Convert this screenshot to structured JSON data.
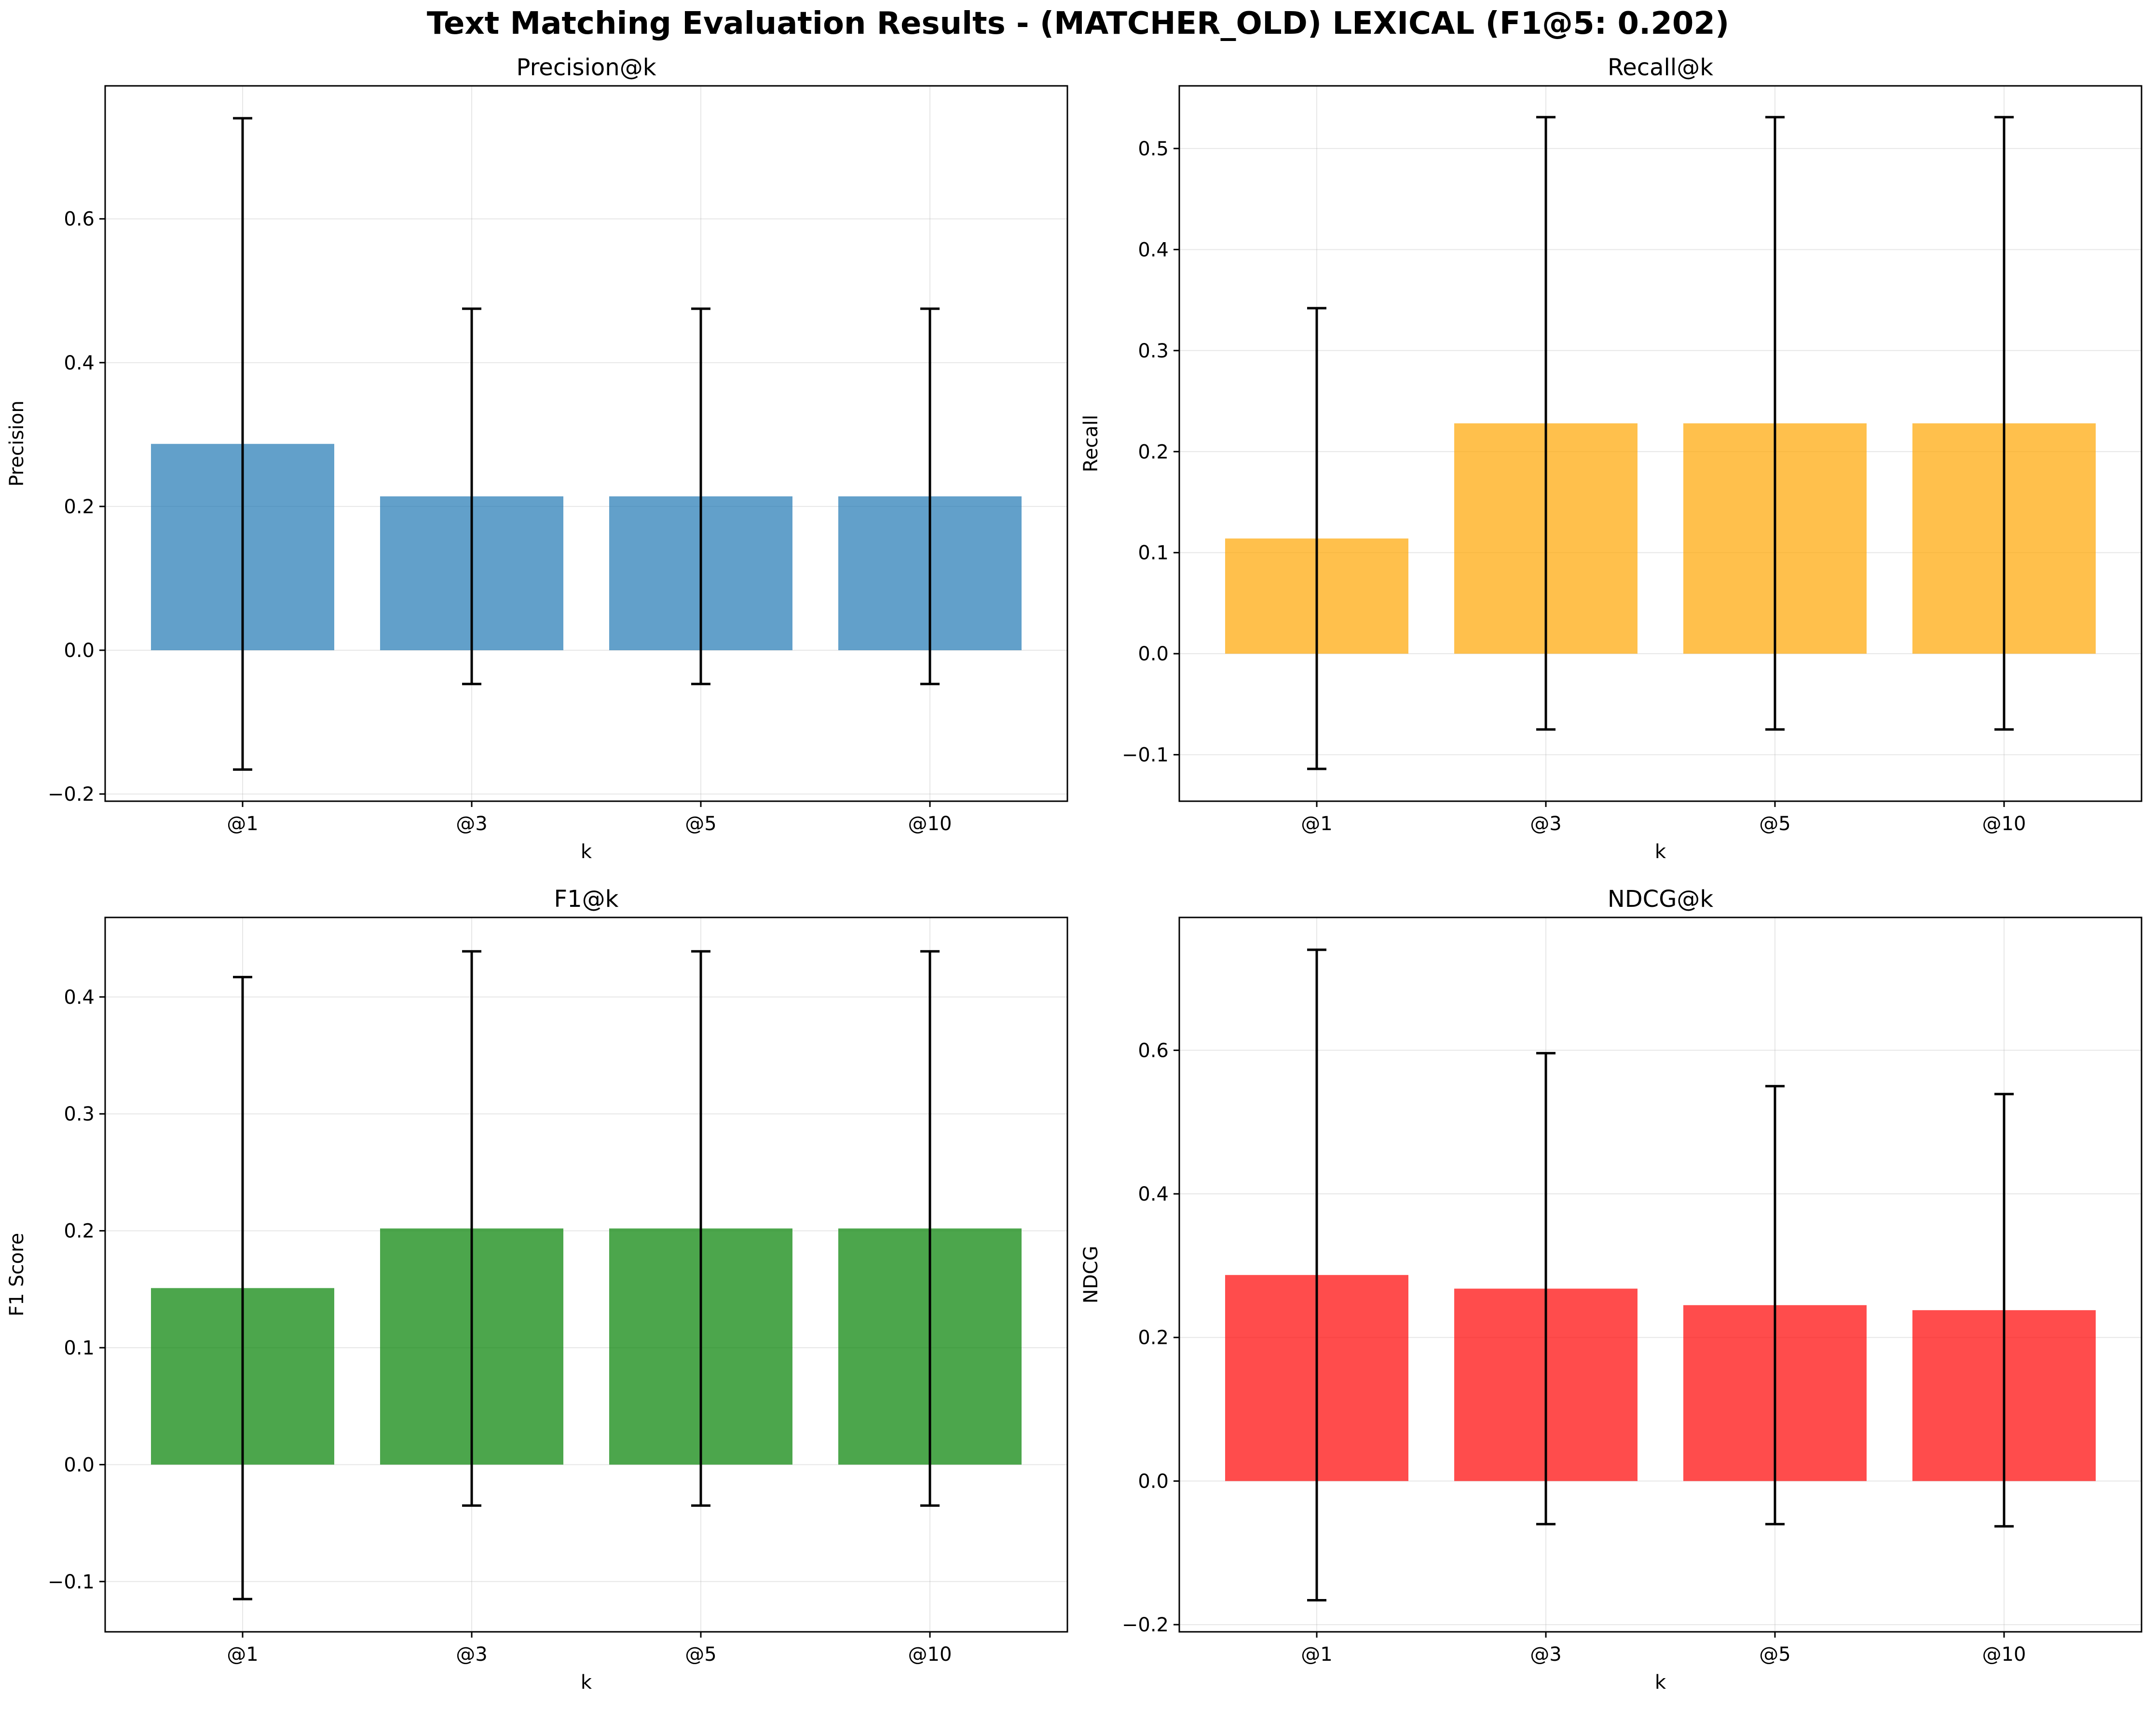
{
  "figure": {
    "title": "Text Matching Evaluation Results - (MATCHER_OLD) LEXICAL (F1@5: 0.202)"
  },
  "chart_data": [
    {
      "type": "bar",
      "title": "Precision@k",
      "xlabel": "k",
      "ylabel": "Precision",
      "categories": [
        "@1",
        "@3",
        "@5",
        "@10"
      ],
      "values": [
        0.287,
        0.214,
        0.214,
        0.214
      ],
      "error": [
        0.453,
        0.261,
        0.261,
        0.261
      ],
      "ylim": [
        -0.21,
        0.785
      ],
      "yticks": [
        -0.2,
        0.0,
        0.2,
        0.4,
        0.6
      ],
      "color": "#1f77b4",
      "grid": true
    },
    {
      "type": "bar",
      "title": "Recall@k",
      "xlabel": "k",
      "ylabel": "Recall",
      "categories": [
        "@1",
        "@3",
        "@5",
        "@10"
      ],
      "values": [
        0.114,
        0.228,
        0.228,
        0.228
      ],
      "error": [
        0.228,
        0.303,
        0.303,
        0.303
      ],
      "ylim": [
        -0.146,
        0.562
      ],
      "yticks": [
        -0.1,
        0.0,
        0.1,
        0.2,
        0.3,
        0.4,
        0.5
      ],
      "color": "#ffa500",
      "grid": true
    },
    {
      "type": "bar",
      "title": "F1@k",
      "xlabel": "k",
      "ylabel": "F1 Score",
      "categories": [
        "@1",
        "@3",
        "@5",
        "@10"
      ],
      "values": [
        0.151,
        0.202,
        0.202,
        0.202
      ],
      "error": [
        0.266,
        0.237,
        0.237,
        0.237
      ],
      "ylim": [
        -0.143,
        0.468
      ],
      "yticks": [
        -0.1,
        0.0,
        0.1,
        0.2,
        0.3,
        0.4
      ],
      "color": "#008000",
      "grid": true
    },
    {
      "type": "bar",
      "title": "NDCG@k",
      "xlabel": "k",
      "ylabel": "NDCG",
      "categories": [
        "@1",
        "@3",
        "@5",
        "@10"
      ],
      "values": [
        0.287,
        0.268,
        0.245,
        0.238
      ],
      "error": [
        0.453,
        0.328,
        0.305,
        0.301
      ],
      "ylim": [
        -0.21,
        0.785
      ],
      "yticks": [
        -0.2,
        0.0,
        0.2,
        0.4,
        0.6
      ],
      "color": "#ff0000",
      "grid": true
    }
  ]
}
